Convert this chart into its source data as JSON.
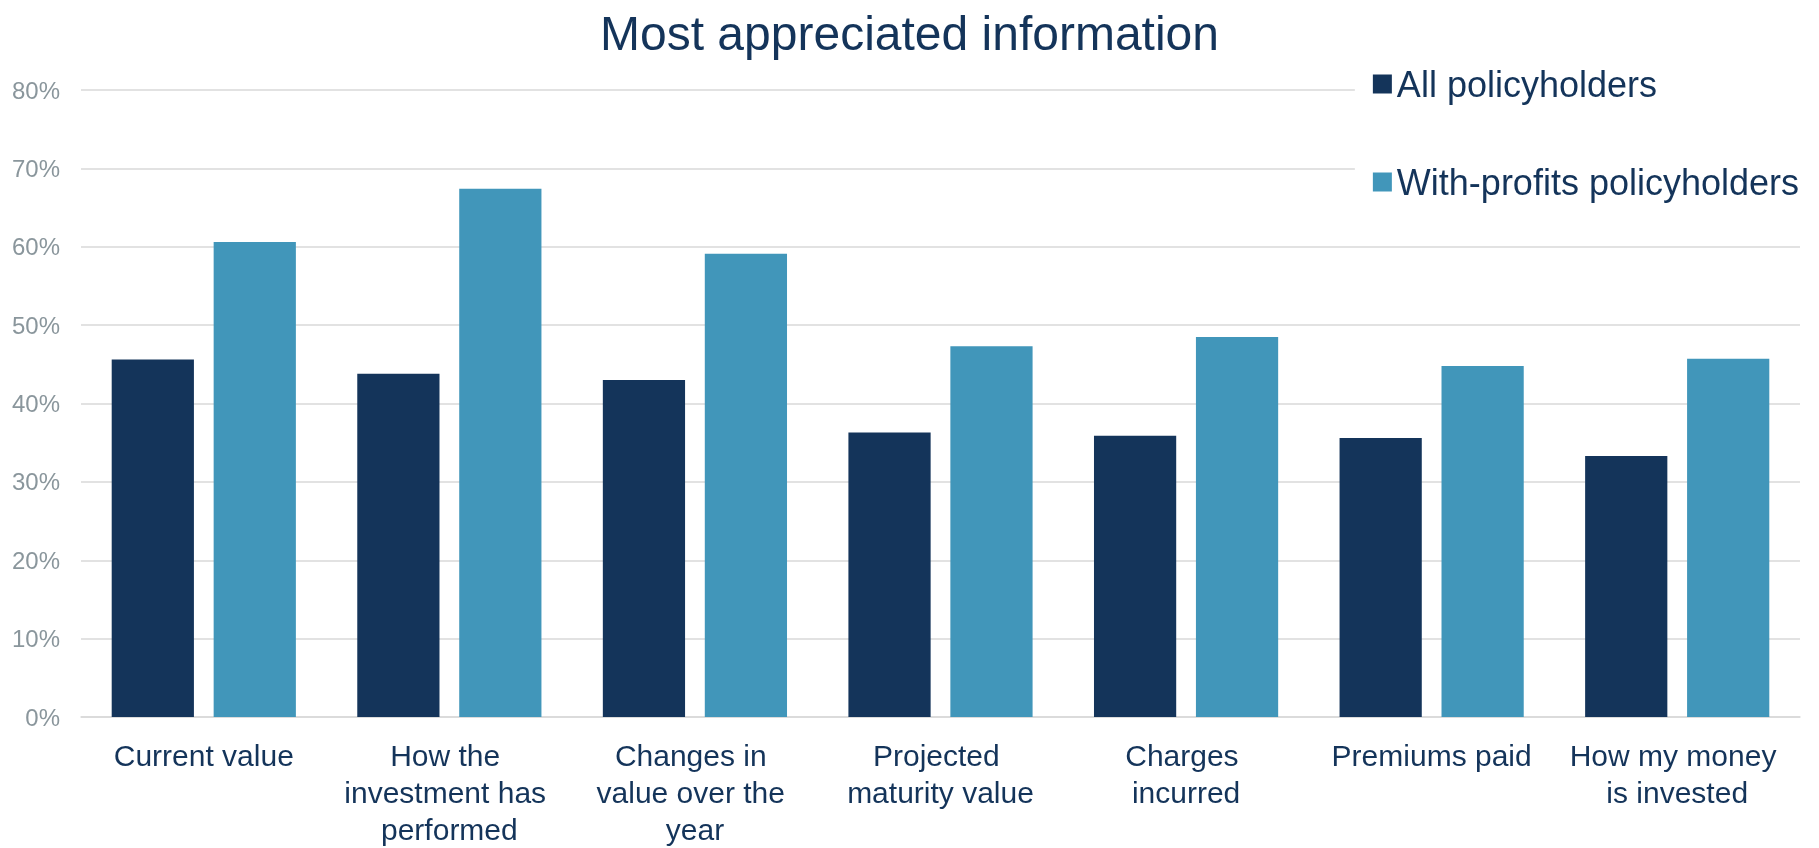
{
  "chart_data": {
    "type": "bar",
    "title": "Most appreciated information",
    "categories": [
      "Current value",
      "How the investment has performed",
      "Changes in value over the year",
      "Projected maturity value",
      "Charges incurred",
      "Premiums paid",
      "How my money is invested"
    ],
    "series": [
      {
        "name": "All policyholders",
        "color": "#14345a",
        "values": [
          45.6,
          43.8,
          43.0,
          36.3,
          35.9,
          35.6,
          33.3
        ]
      },
      {
        "name": "With-profits policyholders",
        "color": "#4196ba",
        "values": [
          60.6,
          67.4,
          59.1,
          47.3,
          48.5,
          44.8,
          45.7
        ]
      }
    ],
    "ylim": [
      0,
      80
    ],
    "yticks": [
      {
        "value": 0,
        "label": "0%"
      },
      {
        "value": 10,
        "label": "10%"
      },
      {
        "value": 20,
        "label": "20%"
      },
      {
        "value": 30,
        "label": "30%"
      },
      {
        "value": 40,
        "label": "40%"
      },
      {
        "value": 50,
        "label": "50%"
      },
      {
        "value": 60,
        "label": "60%"
      },
      {
        "value": 70,
        "label": "70%"
      },
      {
        "value": 80,
        "label": "80%"
      }
    ],
    "grid": true,
    "legend": "top right"
  }
}
